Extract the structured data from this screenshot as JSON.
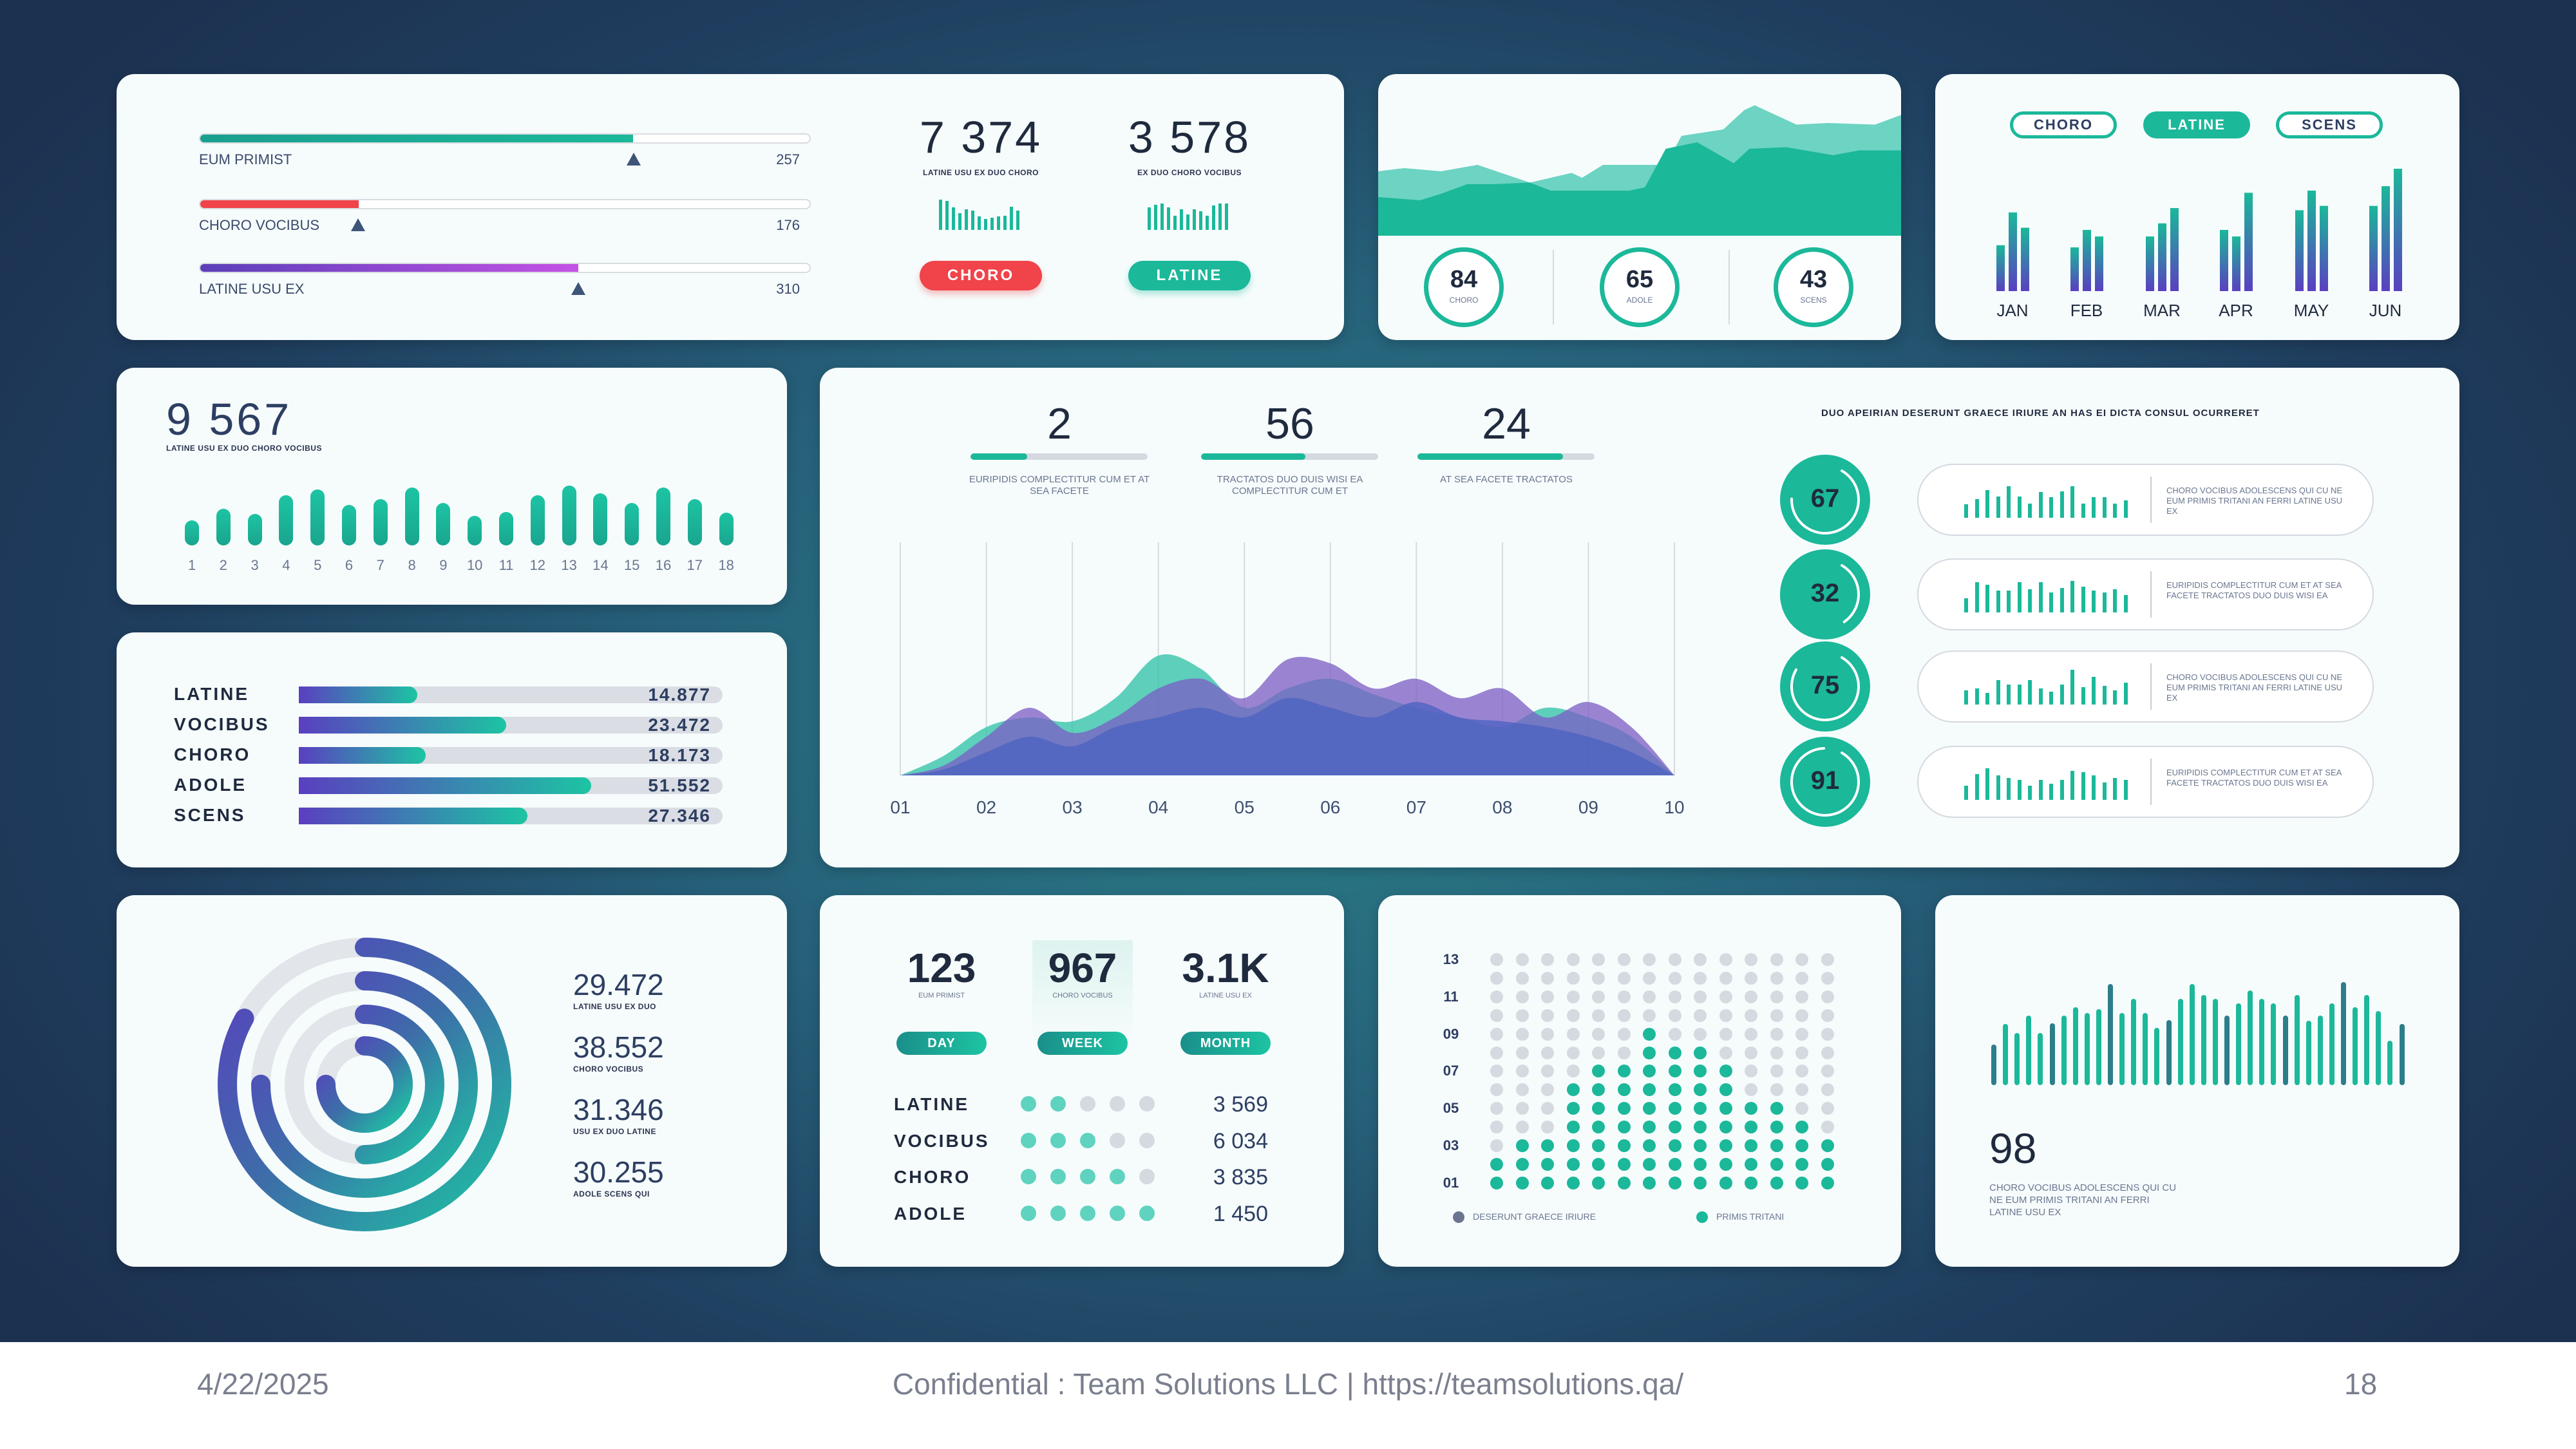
{
  "footer": {
    "date": "4/22/2025",
    "center": "Confidential : Team Solutions LLC | https://teamsolutions.qa/",
    "page": "18"
  },
  "colors": {
    "teal": "#1bb89a",
    "teal_dark": "#2d7d8a",
    "red": "#f0434a",
    "purple": "#5a3fb8",
    "magenta": "#c552e6",
    "navy": "#2d3e62",
    "grey": "#d5d9e0"
  },
  "card_progress": {
    "rows": [
      {
        "label": "EUM PRIMIST",
        "value": "257",
        "fill": 0.71
      },
      {
        "label": "CHORO VOCIBUS",
        "value": "176",
        "fill": 0.26
      },
      {
        "label": "LATINE USU EX",
        "value": "310",
        "fill": 0.62
      }
    ],
    "stats": [
      {
        "value": "7 374",
        "label": "LATINE USU EX DUO CHORO",
        "button": "CHORO",
        "button_color": "#f0434a",
        "bars": [
          47,
          45,
          35,
          26,
          32,
          30,
          21,
          17,
          19,
          21,
          22,
          36,
          30
        ]
      },
      {
        "value": "3 578",
        "label": "EX DUO CHORO VOCIBUS",
        "button": "LATINE",
        "button_color": "#1bb89a",
        "bars": [
          35,
          39,
          41,
          35,
          22,
          32,
          24,
          32,
          29,
          22,
          38,
          41,
          41
        ]
      }
    ]
  },
  "card_area": {
    "circles": [
      {
        "value": "84",
        "label": "CHORO"
      },
      {
        "value": "65",
        "label": "ADOLE"
      },
      {
        "value": "43",
        "label": "SCENS"
      }
    ]
  },
  "card_months": {
    "pills": [
      {
        "label": "CHORO",
        "active": false
      },
      {
        "label": "LATINE",
        "active": true
      },
      {
        "label": "SCENS",
        "active": false
      }
    ]
  },
  "card_total": {
    "value": "9 567",
    "label": "LATINE USU EX DUO CHORO VOCIBUS"
  },
  "card_waves": {
    "stats": [
      {
        "value": "2",
        "fill": 0.32,
        "caption": "EURIPIDIS COMPLECTITUR CUM ET AT SEA FACETE"
      },
      {
        "value": "56",
        "fill": 0.59,
        "caption": "TRACTATOS DUO DUIS WISI EA COMPLECTITUR CUM ET"
      },
      {
        "value": "24",
        "fill": 0.82,
        "caption": "AT SEA FACETE TRACTATOS"
      }
    ],
    "heading": "DUO APEIRIAN DESERUNT GRAECE IRIURE AN HAS EI DICTA CONSUL OCURRERET",
    "gauges": [
      {
        "value": "67",
        "text": "CHORO VOCIBUS ADOLESCENS QUI CU NE EUM PRIMIS TRITANI AN FERRI LATINE USU EX",
        "bars": [
          47,
          65,
          95,
          73,
          110,
          73,
          50,
          90,
          72,
          92,
          110,
          50,
          72,
          72,
          48,
          60
        ]
      },
      {
        "value": "32",
        "text": "EURIPIDIS COMPLECTITUR CUM ET AT SEA FACETE TRACTATOS DUO DUIS WISI EA",
        "bars": [
          50,
          105,
          95,
          75,
          75,
          105,
          80,
          105,
          70,
          85,
          110,
          90,
          75,
          70,
          80,
          60
        ]
      },
      {
        "value": "75",
        "text": "CHORO VOCIBUS ADOLESCENS QUI CU NE EUM PRIMIS TRITANI AN FERRI LATINE USU EX",
        "bars": [
          50,
          55,
          40,
          85,
          70,
          70,
          85,
          55,
          45,
          70,
          120,
          60,
          95,
          65,
          50,
          75
        ]
      },
      {
        "value": "91",
        "text": "EURIPIDIS COMPLECTITUR CUM ET AT SEA FACETE TRACTATOS DUO DUIS WISI EA",
        "bars": [
          50,
          90,
          110,
          85,
          75,
          70,
          50,
          70,
          55,
          70,
          100,
          95,
          85,
          60,
          75,
          70
        ]
      }
    ]
  },
  "card_rings": {
    "items": [
      {
        "value": "29.472",
        "label": "LATINE USU EX DUO",
        "fraction": 0.83
      },
      {
        "value": "38.552",
        "label": "CHORO VOCIBUS",
        "fraction": 0.75
      },
      {
        "value": "31.346",
        "label": "USU EX DUO LATINE",
        "fraction": 0.5
      },
      {
        "value": "30.255",
        "label": "ADOLE SCENS QUI",
        "fraction": 0.75
      }
    ]
  },
  "card_periods": {
    "stats": [
      {
        "value": "123",
        "label": "EUM PRIMIST",
        "button": "DAY",
        "highlighted": false
      },
      {
        "value": "967",
        "label": "CHORO VOCIBUS",
        "button": "WEEK",
        "highlighted": true
      },
      {
        "value": "3.1K",
        "label": "LATINE USU EX",
        "button": "MONTH",
        "highlighted": false
      }
    ],
    "rows": [
      {
        "label": "LATINE",
        "rating": 2,
        "value": "3 569"
      },
      {
        "label": "VOCIBUS",
        "rating": 3,
        "value": "6 034"
      },
      {
        "label": "CHORO",
        "rating": 4,
        "value": "3 835"
      },
      {
        "label": "ADOLE",
        "rating": 5,
        "value": "1 450"
      }
    ],
    "rating_max": 5
  },
  "card_dots": {
    "legend": [
      {
        "label": "DESERUNT GRAECE IRIURE",
        "color": "#6b7590"
      },
      {
        "label": "PRIMIS TRITANI",
        "color": "#1bb89a"
      }
    ]
  },
  "card_bars": {
    "value": "98",
    "text": "CHORO VOCIBUS ADOLESCENS QUI CU NE EUM PRIMIS TRITANI AN FERRI LATINE USU EX"
  },
  "chart_data": [
    {
      "type": "area",
      "series": [
        {
          "points": [
            [
              0,
              40
            ],
            [
              5,
              42
            ],
            [
              12,
              40
            ],
            [
              19,
              44
            ],
            [
              29,
              33
            ],
            [
              37,
              39
            ],
            [
              39,
              36
            ],
            [
              43,
              44
            ],
            [
              55,
              44
            ],
            [
              58,
              62
            ],
            [
              66,
              66
            ],
            [
              70,
              78
            ],
            [
              72,
              81
            ],
            [
              80,
              69
            ],
            [
              86,
              70
            ],
            [
              95,
              69
            ],
            [
              100,
              75
            ]
          ]
        },
        {
          "points": [
            [
              0,
              24
            ],
            [
              8,
              22
            ],
            [
              12,
              26
            ],
            [
              17,
              32
            ],
            [
              22,
              32
            ],
            [
              29,
              33
            ],
            [
              33,
              28
            ],
            [
              40,
              28
            ],
            [
              48,
              28
            ],
            [
              51,
              30
            ],
            [
              55,
              54
            ],
            [
              61,
              58
            ],
            [
              68,
              45
            ],
            [
              71,
              54
            ],
            [
              78,
              55
            ],
            [
              87,
              50
            ],
            [
              92,
              53
            ],
            [
              100,
              53
            ]
          ]
        }
      ]
    },
    {
      "type": "bar",
      "categories": [
        "JAN",
        "FEB",
        "MAR",
        "APR",
        "MAY",
        "JUN"
      ],
      "series": [
        {
          "values": [
            21,
            20,
            25,
            28,
            37,
            39
          ]
        },
        {
          "values": [
            36,
            28,
            31,
            25,
            46,
            48
          ]
        },
        {
          "values": [
            29,
            25,
            38,
            45,
            39,
            56
          ]
        }
      ]
    },
    {
      "type": "bar",
      "categories": [
        "1",
        "2",
        "3",
        "4",
        "5",
        "6",
        "7",
        "8",
        "9",
        "10",
        "11",
        "12",
        "13",
        "14",
        "15",
        "16",
        "17",
        "18"
      ],
      "values": [
        26,
        38,
        33,
        52,
        58,
        42,
        48,
        60,
        44,
        31,
        35,
        52,
        62,
        54,
        44,
        60,
        48,
        34
      ]
    },
    {
      "type": "bar",
      "orientation": "horizontal",
      "categories": [
        "LATINE",
        "VOCIBUS",
        "CHORO",
        "ADOLE",
        "SCENS"
      ],
      "labels": [
        "14.877",
        "23.472",
        "18.173",
        "51.552",
        "27.346"
      ],
      "values": [
        14.877,
        23.472,
        18.173,
        51.552,
        27.346
      ],
      "fill": [
        0.28,
        0.49,
        0.3,
        0.69,
        0.54
      ]
    },
    {
      "type": "area",
      "categories": [
        "01",
        "02",
        "03",
        "04",
        "05",
        "06",
        "07",
        "08",
        "09",
        "10"
      ],
      "x": [
        1,
        1.5,
        2,
        2.5,
        3,
        3.5,
        4,
        4.5,
        5,
        5.5,
        6,
        6.5,
        7,
        7.5,
        8,
        8.5,
        9,
        9.5,
        10
      ],
      "series": [
        {
          "color": "#2bc0a6",
          "values": [
            0,
            10,
            25,
            30,
            28,
            40,
            62,
            55,
            35,
            45,
            50,
            42,
            35,
            30,
            25,
            35,
            30,
            20,
            0
          ]
        },
        {
          "color": "#7b5cc4",
          "values": [
            0,
            5,
            20,
            35,
            22,
            30,
            45,
            50,
            40,
            60,
            58,
            45,
            50,
            40,
            45,
            30,
            38,
            25,
            0
          ]
        },
        {
          "color": "#4a62c0",
          "values": [
            0,
            3,
            12,
            20,
            15,
            25,
            30,
            35,
            30,
            40,
            35,
            30,
            38,
            30,
            28,
            25,
            20,
            12,
            0
          ]
        }
      ]
    },
    {
      "type": "dot-matrix",
      "rows": 13,
      "cols": 14,
      "ytick_labels": [
        "13",
        "11",
        "09",
        "07",
        "05",
        "03",
        "01"
      ],
      "filled_ranges_top_to_bottom": [
        null,
        null,
        null,
        null,
        [
          6,
          6
        ],
        [
          6,
          8
        ],
        [
          4,
          9
        ],
        [
          3,
          9
        ],
        [
          3,
          11
        ],
        [
          3,
          12
        ],
        [
          1,
          13
        ],
        [
          0,
          13
        ],
        [
          0,
          13
        ]
      ]
    },
    {
      "type": "bar",
      "values": [
        63,
        95,
        81,
        108,
        81,
        96,
        108,
        121,
        112,
        118,
        157,
        112,
        134,
        112,
        89,
        101,
        134,
        157,
        140,
        134,
        108,
        127,
        147,
        134,
        127,
        108,
        140,
        100,
        108,
        127,
        160,
        121,
        140,
        115,
        69,
        95
      ],
      "dark_every": 5
    }
  ]
}
